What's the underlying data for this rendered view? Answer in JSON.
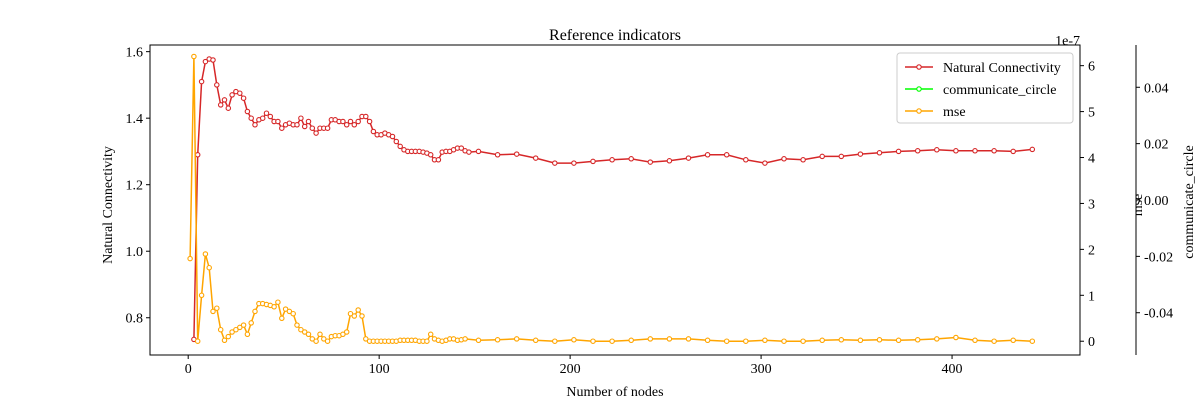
{
  "chart_data": {
    "type": "line",
    "title": "Reference indicators",
    "xlabel": "Number of nodes",
    "xlim": [
      -20,
      467
    ],
    "xticks": [
      "0",
      "100",
      "200",
      "300",
      "400"
    ],
    "xtick_values": [
      0,
      100,
      200,
      300,
      400
    ],
    "axes": {
      "left": {
        "label": "Natural Connectivity",
        "lim": [
          0.688,
          1.62
        ],
        "ticks": [
          "0.8",
          "1.0",
          "1.2",
          "1.4",
          "1.6"
        ],
        "tick_values": [
          0.8,
          1.0,
          1.2,
          1.4,
          1.6
        ]
      },
      "right": {
        "label": "mse",
        "lim": [
          -0.3,
          6.45
        ],
        "offset_label": "1e-7",
        "ticks": [
          "0",
          "1",
          "2",
          "3",
          "4",
          "5",
          "6"
        ],
        "tick_values": [
          0,
          1,
          2,
          3,
          4,
          5,
          6
        ]
      },
      "right2": {
        "label": "communicate_circle",
        "lim": [
          -0.055,
          0.055
        ],
        "ticks": [
          "0.04",
          "0.02",
          "0.00",
          "-0.02",
          "-0.04"
        ],
        "tick_values": [
          0.04,
          0.02,
          0.0,
          -0.02,
          -0.04
        ]
      }
    },
    "legend": {
      "placement": "top-right",
      "entries": [
        "Natural Connectivity",
        "communicate_circle",
        "mse"
      ]
    },
    "series": [
      {
        "name": "Natural Connectivity",
        "axis": "left",
        "color": "#d62728",
        "x": [
          3,
          5,
          7,
          9,
          11,
          13,
          15,
          17,
          19,
          21,
          23,
          25,
          27,
          29,
          31,
          33,
          35,
          37,
          39,
          41,
          43,
          45,
          47,
          49,
          51,
          53,
          55,
          57,
          59,
          61,
          63,
          65,
          67,
          69,
          71,
          73,
          75,
          77,
          79,
          81,
          83,
          85,
          87,
          89,
          91,
          93,
          95,
          97,
          99,
          101,
          103,
          105,
          107,
          109,
          111,
          113,
          115,
          117,
          119,
          121,
          123,
          125,
          127,
          129,
          131,
          133,
          135,
          137,
          139,
          141,
          143,
          145,
          147,
          152,
          162,
          172,
          182,
          192,
          202,
          212,
          222,
          232,
          242,
          252,
          262,
          272,
          282,
          292,
          302,
          312,
          322,
          332,
          342,
          352,
          362,
          372,
          382,
          392,
          402,
          412,
          422,
          432,
          442
        ],
        "y": [
          0.735,
          1.29,
          1.51,
          1.57,
          1.578,
          1.575,
          1.5,
          1.44,
          1.455,
          1.43,
          1.47,
          1.48,
          1.475,
          1.46,
          1.42,
          1.4,
          1.38,
          1.395,
          1.4,
          1.415,
          1.405,
          1.39,
          1.39,
          1.37,
          1.38,
          1.385,
          1.38,
          1.38,
          1.4,
          1.375,
          1.39,
          1.37,
          1.355,
          1.37,
          1.37,
          1.37,
          1.395,
          1.395,
          1.39,
          1.39,
          1.38,
          1.39,
          1.38,
          1.39,
          1.405,
          1.405,
          1.39,
          1.36,
          1.35,
          1.35,
          1.355,
          1.35,
          1.345,
          1.33,
          1.315,
          1.305,
          1.3,
          1.3,
          1.3,
          1.3,
          1.298,
          1.295,
          1.29,
          1.275,
          1.275,
          1.298,
          1.3,
          1.3,
          1.305,
          1.31,
          1.31,
          1.302,
          1.298,
          1.3,
          1.29,
          1.292,
          1.28,
          1.265,
          1.265,
          1.27,
          1.275,
          1.278,
          1.268,
          1.272,
          1.28,
          1.29,
          1.29,
          1.275,
          1.265,
          1.278,
          1.275,
          1.285,
          1.285,
          1.292,
          1.296,
          1.3,
          1.302,
          1.305,
          1.302,
          1.302,
          1.302,
          1.3,
          1.306
        ]
      },
      {
        "name": "communicate_circle",
        "axis": "right2",
        "color": "#00ff00",
        "x": [],
        "y": []
      },
      {
        "name": "mse",
        "axis": "right",
        "color": "#ffa500",
        "x": [
          1,
          3,
          5,
          7,
          9,
          11,
          13,
          15,
          17,
          19,
          21,
          23,
          25,
          27,
          29,
          31,
          33,
          35,
          37,
          39,
          41,
          43,
          45,
          47,
          49,
          51,
          53,
          55,
          57,
          59,
          61,
          63,
          65,
          67,
          69,
          71,
          73,
          75,
          77,
          79,
          81,
          83,
          85,
          87,
          89,
          91,
          93,
          95,
          97,
          99,
          101,
          103,
          105,
          107,
          109,
          111,
          113,
          115,
          117,
          119,
          121,
          123,
          125,
          127,
          129,
          131,
          133,
          135,
          137,
          139,
          141,
          143,
          145,
          152,
          162,
          172,
          182,
          192,
          202,
          212,
          222,
          232,
          242,
          252,
          262,
          272,
          282,
          292,
          302,
          312,
          322,
          332,
          342,
          352,
          362,
          372,
          382,
          392,
          402,
          412,
          422,
          432,
          442
        ],
        "y": [
          1.8,
          6.2,
          0.0,
          1.0,
          1.9,
          1.6,
          0.65,
          0.72,
          0.25,
          0.02,
          0.1,
          0.2,
          0.25,
          0.3,
          0.35,
          0.15,
          0.4,
          0.65,
          0.82,
          0.82,
          0.8,
          0.78,
          0.75,
          0.85,
          0.5,
          0.7,
          0.65,
          0.6,
          0.35,
          0.25,
          0.2,
          0.15,
          0.05,
          0.0,
          0.15,
          0.05,
          0.0,
          0.1,
          0.12,
          0.12,
          0.15,
          0.2,
          0.6,
          0.55,
          0.68,
          0.55,
          0.05,
          0.0,
          0.0,
          0.0,
          0.0,
          0.0,
          0.0,
          0.0,
          0.0,
          0.02,
          0.02,
          0.02,
          0.02,
          0.02,
          0.0,
          0.0,
          0.0,
          0.15,
          0.05,
          0.02,
          0.0,
          0.02,
          0.05,
          0.05,
          0.02,
          0.03,
          0.05,
          0.02,
          0.03,
          0.05,
          0.02,
          0.0,
          0.03,
          0.0,
          0.0,
          0.02,
          0.05,
          0.05,
          0.05,
          0.02,
          0.0,
          0.0,
          0.02,
          0.0,
          0.0,
          0.02,
          0.03,
          0.02,
          0.03,
          0.02,
          0.03,
          0.05,
          0.08,
          0.02,
          0.0,
          0.02,
          0.0
        ]
      }
    ]
  }
}
